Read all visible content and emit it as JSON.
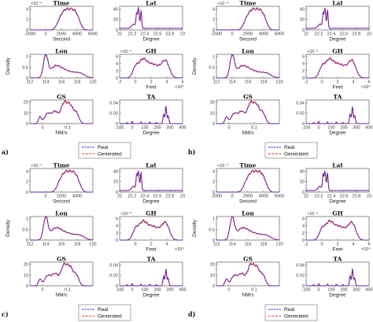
{
  "figure": {
    "colors": {
      "real": "#1a1ae6",
      "generated": "#e63c3c",
      "axis": "#444444"
    },
    "legend": {
      "real": "Real",
      "generated": "Generated"
    },
    "density_label": "Density",
    "panel_labels": [
      "a)",
      "b)",
      "c)",
      "d)"
    ]
  },
  "chart_data": [
    {
      "panel": "a)",
      "type": "line",
      "subplots": [
        {
          "title": "Time",
          "xlabel": "Second",
          "xlim": [
            -2000,
            6000
          ],
          "xticks": [
            "-2000",
            "0",
            "2000",
            "4000",
            "6000"
          ],
          "yticks": [
            "0",
            "2",
            "4"
          ],
          "ylim": [
            0,
            4.5
          ],
          "multiplier": "×10⁻⁴",
          "shape": "time"
        },
        {
          "title": "Lat",
          "xlabel": "Degree",
          "xlim": [
            22,
            23
          ],
          "xticks": [
            "22",
            "22.2",
            "22.4",
            "22.6",
            "22.8",
            "23"
          ],
          "yticks": [
            "0",
            "20",
            "40"
          ],
          "ylim": [
            0,
            45
          ],
          "shape": "lat"
        },
        {
          "title": "Lon",
          "xlabel": "",
          "xlim": [
            112,
            120
          ],
          "xticks": [
            "112",
            "114",
            "116",
            "118",
            "120"
          ],
          "yticks": [
            "0",
            "0.5",
            "1"
          ],
          "ylim": [
            0,
            1.1
          ],
          "shape": "lon"
        },
        {
          "title": "GH",
          "xlabel": "Feet",
          "xlim": [
            -2,
            6
          ],
          "xticks": [
            "-2",
            "0",
            "2",
            "4",
            "6"
          ],
          "yticks": [
            "0",
            "2",
            "4",
            "6"
          ],
          "ylim": [
            0,
            6.5
          ],
          "multiplier": "×10⁻⁵",
          "xmultiplier": "×10⁴",
          "shape": "gh"
        },
        {
          "title": "GS",
          "xlabel": "NM/s",
          "xlim": [
            -0.05,
            0.2
          ],
          "xticks": [
            "0",
            "0.1"
          ],
          "yticks": [
            "0",
            "10",
            "20"
          ],
          "ylim": [
            0,
            22
          ],
          "shape": "gs"
        },
        {
          "title": "TA",
          "xlabel": "Degree",
          "xlim": [
            -100,
            400
          ],
          "xticks": [
            "-100",
            "0",
            "100",
            "200",
            "300",
            "400"
          ],
          "yticks": [
            "0",
            "0.02",
            "0.04"
          ],
          "ylim": [
            0,
            0.045
          ],
          "shape": "ta"
        }
      ]
    },
    {
      "panel": "b)",
      "type": "line",
      "subplots": [
        {
          "title": "Time",
          "xlabel": "Second",
          "xlim": [
            -2000,
            6000
          ],
          "xticks": [
            "-2000",
            "0",
            "2000",
            "4000",
            "6000"
          ],
          "yticks": [
            "0",
            "2",
            "4"
          ],
          "ylim": [
            0,
            4.5
          ],
          "multiplier": "×10⁻⁴",
          "shape": "time"
        },
        {
          "title": "Lat",
          "xlabel": "Degree",
          "xlim": [
            22,
            23
          ],
          "xticks": [
            "22",
            "22.2",
            "22.4",
            "22.6",
            "22.8",
            "23"
          ],
          "yticks": [
            "0",
            "20",
            "40"
          ],
          "ylim": [
            0,
            45
          ],
          "shape": "lat"
        },
        {
          "title": "Lon",
          "xlabel": "",
          "xlim": [
            112,
            120
          ],
          "xticks": [
            "112",
            "114",
            "116",
            "118",
            "120"
          ],
          "yticks": [
            "0",
            "0.5",
            "1"
          ],
          "ylim": [
            0,
            1.1
          ],
          "shape": "lon"
        },
        {
          "title": "GH",
          "xlabel": "Feet",
          "xlim": [
            -2,
            6
          ],
          "xticks": [
            "-2",
            "0",
            "2",
            "4",
            "6"
          ],
          "yticks": [
            "0",
            "2",
            "4",
            "6"
          ],
          "ylim": [
            0,
            6.5
          ],
          "multiplier": "×10⁻⁵",
          "xmultiplier": "×10⁴",
          "shape": "gh"
        },
        {
          "title": "GS",
          "xlabel": "NM/s",
          "xlim": [
            -0.05,
            0.2
          ],
          "xticks": [
            "0",
            "0.1"
          ],
          "yticks": [
            "0",
            "10",
            "20"
          ],
          "ylim": [
            0,
            22
          ],
          "shape": "gs"
        },
        {
          "title": "TA",
          "xlabel": "Degree",
          "xlim": [
            -100,
            400
          ],
          "xticks": [
            "-100",
            "0",
            "100",
            "200",
            "300",
            "400"
          ],
          "yticks": [
            "0",
            "0.02",
            "0.04"
          ],
          "ylim": [
            0,
            0.045
          ],
          "shape": "ta"
        }
      ]
    },
    {
      "panel": "c)",
      "type": "line",
      "subplots": [
        {
          "title": "Time",
          "xlabel": "Second",
          "xlim": [
            -2000,
            6000
          ],
          "xticks": [
            "0",
            "2000",
            "4000"
          ],
          "yticks": [
            "0",
            "2",
            "4"
          ],
          "ylim": [
            0,
            4.5
          ],
          "multiplier": "×10⁻⁴",
          "shape": "time"
        },
        {
          "title": "Lat",
          "xlabel": "Degree",
          "xlim": [
            22,
            23
          ],
          "xticks": [
            "22",
            "22.2",
            "22.4",
            "22.6",
            "22.8",
            "23"
          ],
          "yticks": [
            "0",
            "20",
            "40"
          ],
          "ylim": [
            0,
            45
          ],
          "shape": "lat"
        },
        {
          "title": "Lon",
          "xlabel": "",
          "xlim": [
            112,
            120
          ],
          "xticks": [
            "112",
            "114",
            "116",
            "118",
            "120"
          ],
          "yticks": [
            "0",
            "0.5",
            "1"
          ],
          "ylim": [
            0,
            1.1
          ],
          "shape": "lon"
        },
        {
          "title": "GH",
          "xlabel": "Feet",
          "xlim": [
            -2,
            6
          ],
          "xticks": [
            "0",
            "2",
            "4"
          ],
          "yticks": [
            "0",
            "2",
            "4",
            "6"
          ],
          "ylim": [
            0,
            6.5
          ],
          "multiplier": "×10⁻⁵",
          "xmultiplier": "×10⁴",
          "shape": "gh"
        },
        {
          "title": "GS",
          "xlabel": "NM/s",
          "xlim": [
            -0.05,
            0.2
          ],
          "xticks": [
            "0",
            "0.1"
          ],
          "yticks": [
            "0",
            "10",
            "20"
          ],
          "ylim": [
            0,
            22
          ],
          "shape": "gs"
        },
        {
          "title": "TA",
          "xlabel": "Degree",
          "xlim": [
            -100,
            400
          ],
          "xticks": [
            "-100",
            "0",
            "100",
            "200",
            "300",
            "400"
          ],
          "yticks": [
            "0",
            "0.02",
            "0.04"
          ],
          "ylim": [
            0,
            0.045
          ],
          "shape": "ta"
        }
      ]
    },
    {
      "panel": "d)",
      "type": "line",
      "subplots": [
        {
          "title": "Time",
          "xlabel": "Second",
          "xlim": [
            -2000,
            6000
          ],
          "xticks": [
            "-2000",
            "0",
            "2000",
            "4000",
            "6000"
          ],
          "yticks": [
            "0",
            "2",
            "4"
          ],
          "ylim": [
            0,
            4.5
          ],
          "multiplier": "×10⁻⁴",
          "shape": "time"
        },
        {
          "title": "Lat",
          "xlabel": "Degree",
          "xlim": [
            22,
            23
          ],
          "xticks": [
            "22",
            "22.2",
            "22.4",
            "22.6",
            "22.8",
            "23"
          ],
          "yticks": [
            "0",
            "20",
            "40"
          ],
          "ylim": [
            0,
            45
          ],
          "shape": "lat"
        },
        {
          "title": "Lon",
          "xlabel": "",
          "xlim": [
            112,
            120
          ],
          "xticks": [
            "112",
            "114",
            "116",
            "118",
            "120"
          ],
          "yticks": [
            "0",
            "0.5",
            "1"
          ],
          "ylim": [
            0,
            1.1
          ],
          "shape": "lon"
        },
        {
          "title": "GH",
          "xlabel": "Feet",
          "xlim": [
            -2,
            6
          ],
          "xticks": [
            "-2",
            "0",
            "2",
            "4",
            "6"
          ],
          "yticks": [
            "0",
            "2",
            "4",
            "6"
          ],
          "ylim": [
            0,
            6.5
          ],
          "multiplier": "×10⁻⁵",
          "xmultiplier": "×10⁴",
          "shape": "gh"
        },
        {
          "title": "GS",
          "xlabel": "NM/s",
          "xlim": [
            -0.05,
            0.2
          ],
          "xticks": [
            "0",
            "0.1"
          ],
          "yticks": [
            "0",
            "10",
            "20"
          ],
          "ylim": [
            0,
            22
          ],
          "shape": "gs"
        },
        {
          "title": "TA",
          "xlabel": "Degree",
          "xlim": [
            -100,
            400
          ],
          "xticks": [
            "-100",
            "0",
            "100",
            "200",
            "300",
            "400"
          ],
          "yticks": [
            "0",
            "0.02",
            "0.04"
          ],
          "ylim": [
            0,
            0.045
          ],
          "shape": "ta"
        }
      ]
    }
  ]
}
